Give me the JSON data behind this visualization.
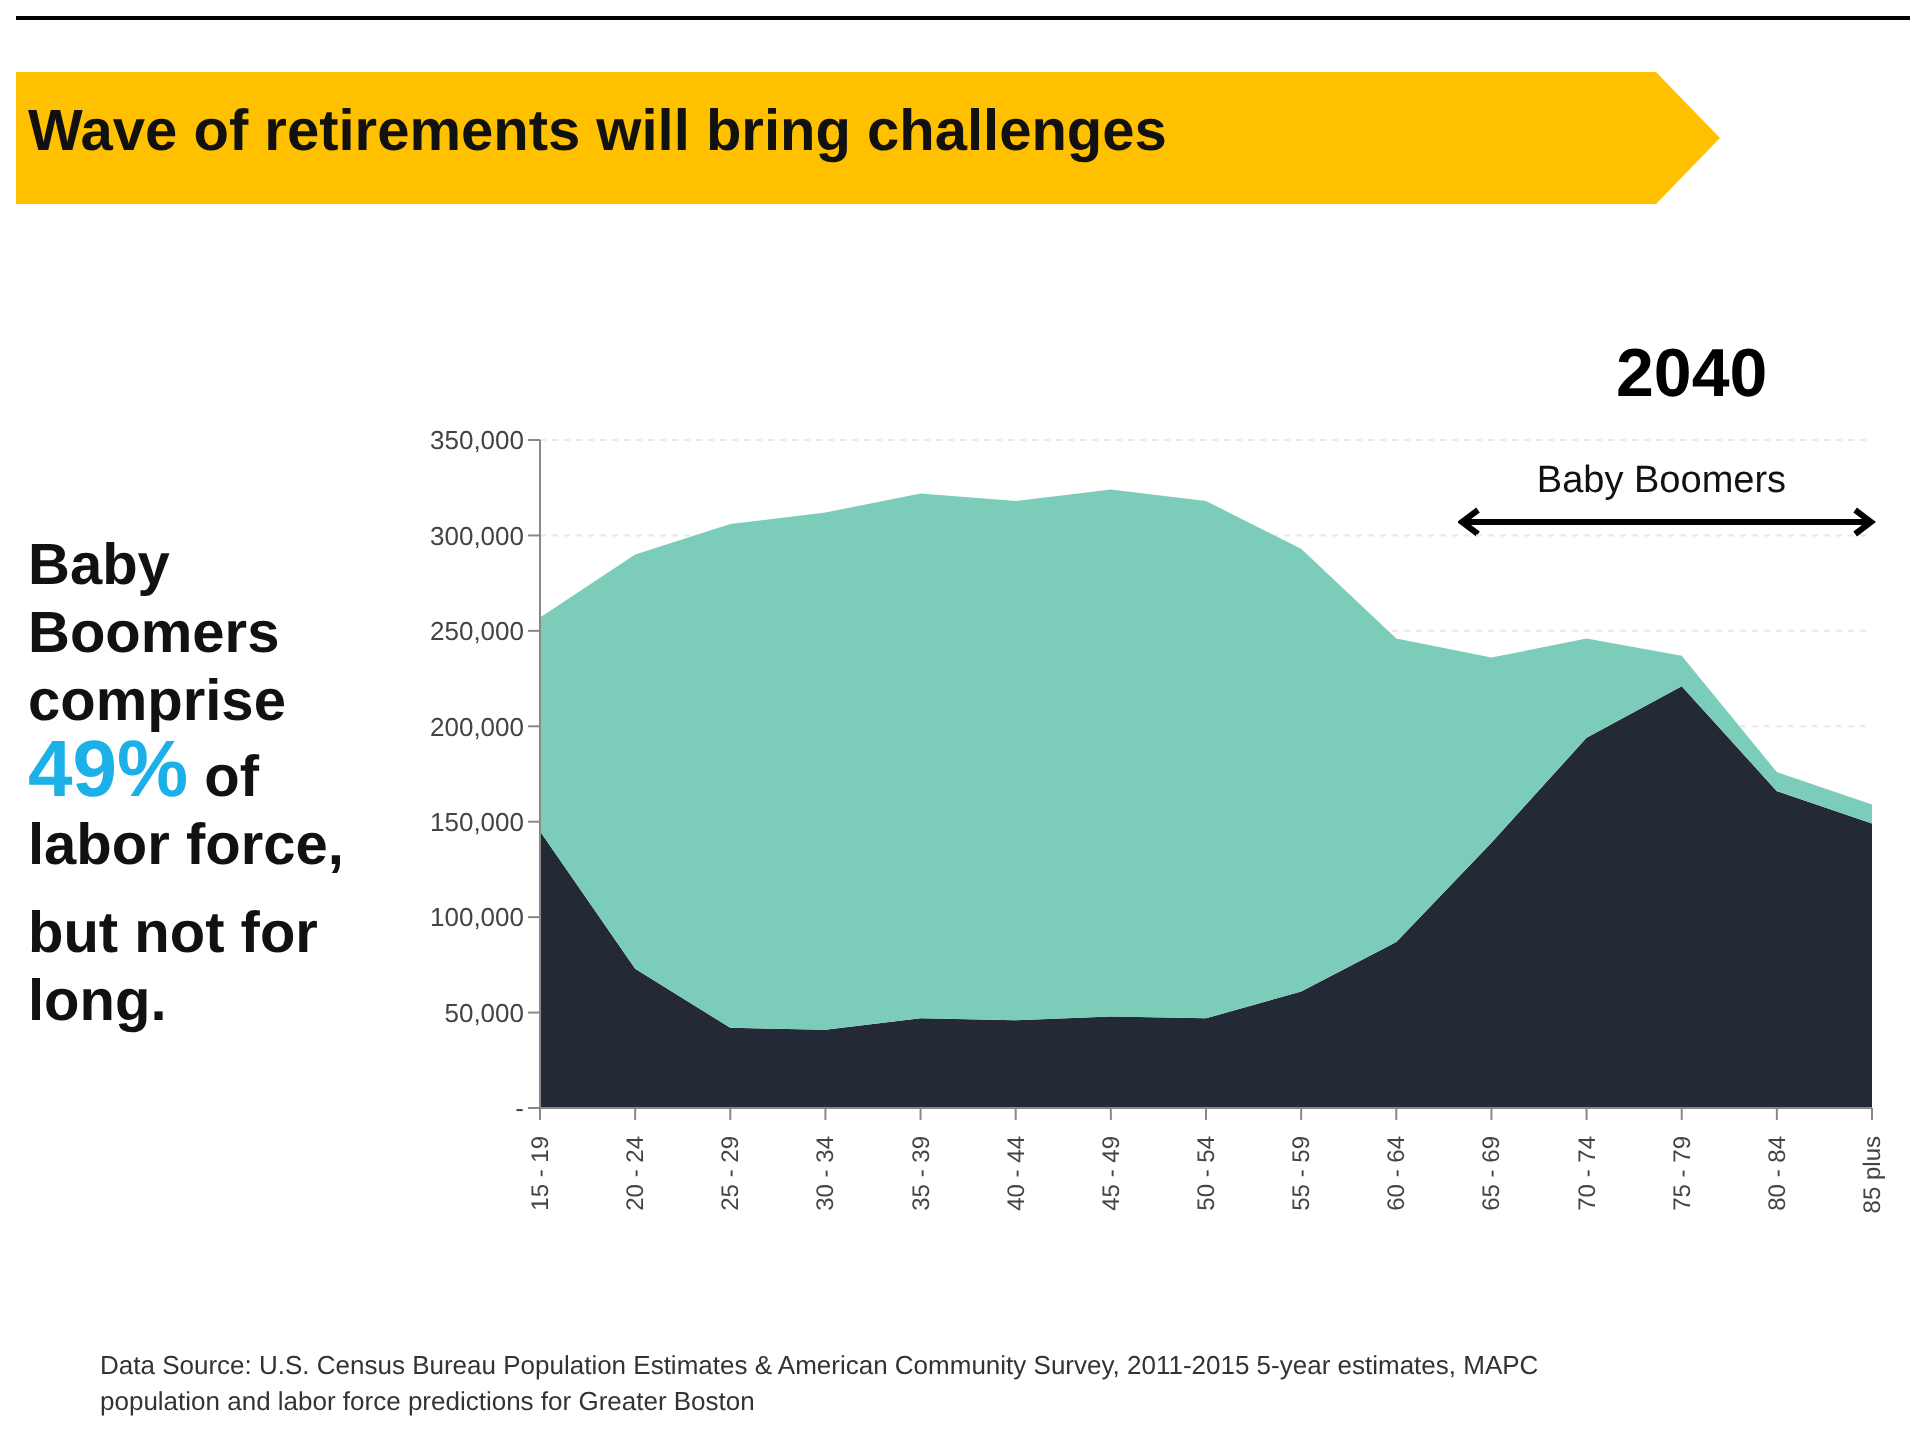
{
  "chart_data": {
    "type": "area",
    "title": "Wave of retirements will bring challenges",
    "subtitle": "2040",
    "categories": [
      "15 - 19",
      "20 - 24",
      "25 - 29",
      "30 - 34",
      "35 - 39",
      "40 - 44",
      "45 - 49",
      "50 - 54",
      "55 - 59",
      "60 - 64",
      "65 - 69",
      "70 - 74",
      "75 - 79",
      "80 - 84",
      "85 plus"
    ],
    "stacked": true,
    "series": [
      {
        "color": "#232a35",
        "values": [
          145000,
          73000,
          42000,
          41000,
          47000,
          46000,
          48000,
          47000,
          61000,
          87000,
          139000,
          194000,
          221000,
          166000,
          149000
        ]
      },
      {
        "color": "#7bcdb9",
        "values": [
          112000,
          217000,
          264000,
          271000,
          275000,
          272000,
          276000,
          271000,
          232000,
          159000,
          97000,
          52000,
          16000,
          10000,
          10000
        ]
      }
    ],
    "ylim": [
      0,
      350000
    ],
    "yticks": [
      {
        "value": 0,
        "label": "-"
      },
      {
        "value": 50000,
        "label": "50,000"
      },
      {
        "value": 100000,
        "label": "100,000"
      },
      {
        "value": 150000,
        "label": "150,000"
      },
      {
        "value": 200000,
        "label": "200,000"
      },
      {
        "value": 250000,
        "label": "250,000"
      },
      {
        "value": 300000,
        "label": "300,000"
      },
      {
        "value": 350000,
        "label": "350,000"
      }
    ],
    "grid": "y",
    "annotations": [
      "Baby Boomers comprise",
      "49%",
      "of",
      "labor force,",
      "but not for long.",
      "Baby Boomers",
      "Data Source:  U.S. Census Bureau Population Estimates & American Community Survey, 2011-2015 5-year estimates, MAPC population and labor force predictions for Greater Boston"
    ]
  }
}
